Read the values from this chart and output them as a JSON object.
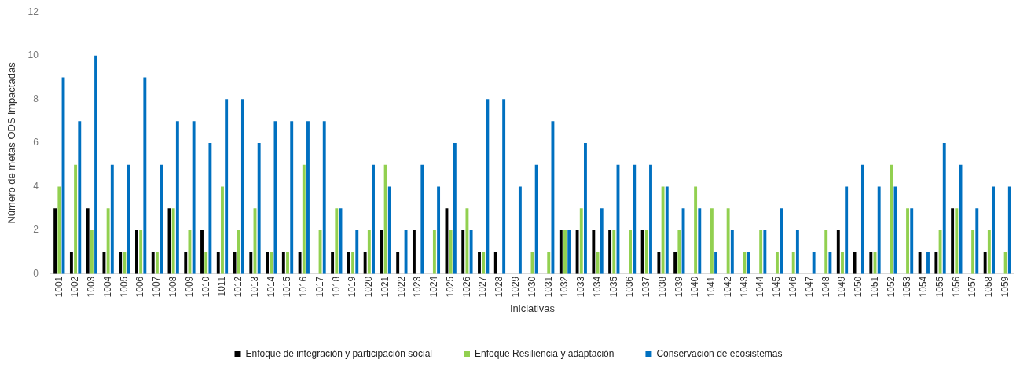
{
  "chart_data": {
    "type": "bar",
    "xlabel": "Iniciativas",
    "ylabel": "Número de metas ODS impactadas",
    "categories": [
      "1001",
      "1002",
      "1003",
      "1004",
      "1005",
      "1006",
      "1007",
      "1008",
      "1009",
      "1010",
      "1011",
      "1012",
      "1013",
      "1014",
      "1015",
      "1016",
      "1017",
      "1018",
      "1019",
      "1020",
      "1021",
      "1022",
      "1023",
      "1024",
      "1025",
      "1026",
      "1027",
      "1028",
      "1029",
      "1030",
      "1031",
      "1032",
      "1033",
      "1034",
      "1035",
      "1036",
      "1037",
      "1038",
      "1039",
      "1040",
      "1041",
      "1042",
      "1043",
      "1044",
      "1045",
      "1046",
      "1047",
      "1048",
      "1049",
      "1050",
      "1051",
      "1052",
      "1053",
      "1054",
      "1055",
      "1056",
      "1057",
      "1058",
      "1059"
    ],
    "series": [
      {
        "name": "Enfoque de integración y participación social",
        "color": "#000000",
        "values": [
          3,
          1,
          3,
          1,
          1,
          2,
          1,
          3,
          1,
          2,
          1,
          1,
          1,
          1,
          1,
          1,
          0,
          1,
          1,
          1,
          2,
          1,
          2,
          0,
          3,
          2,
          1,
          1,
          0,
          0,
          0,
          2,
          2,
          2,
          2,
          0,
          2,
          1,
          1,
          0,
          0,
          0,
          0,
          0,
          0,
          0,
          0,
          0,
          2,
          1,
          1,
          0,
          0,
          1,
          1,
          3,
          0,
          1,
          0
        ]
      },
      {
        "name": "Enfoque Resiliencia y adaptación",
        "color": "#92d050",
        "values": [
          4,
          5,
          2,
          3,
          1,
          2,
          1,
          3,
          2,
          1,
          4,
          2,
          3,
          1,
          1,
          5,
          2,
          3,
          1,
          2,
          5,
          0,
          0,
          2,
          2,
          3,
          1,
          0,
          0,
          1,
          1,
          2,
          3,
          1,
          2,
          2,
          2,
          4,
          2,
          4,
          3,
          3,
          1,
          2,
          1,
          1,
          0,
          2,
          1,
          0,
          1,
          5,
          3,
          0,
          2,
          3,
          2,
          2,
          1
        ]
      },
      {
        "name": "Conservación de ecosistemas",
        "color": "#0070c0",
        "values": [
          9,
          7,
          10,
          5,
          5,
          9,
          5,
          7,
          7,
          6,
          8,
          8,
          6,
          7,
          7,
          7,
          7,
          3,
          2,
          5,
          4,
          2,
          5,
          4,
          6,
          2,
          8,
          8,
          4,
          5,
          7,
          2,
          6,
          3,
          5,
          5,
          5,
          4,
          3,
          3,
          1,
          2,
          1,
          2,
          3,
          2,
          1,
          1,
          4,
          5,
          4,
          4,
          3,
          1,
          6,
          5,
          3,
          4,
          4
        ]
      }
    ],
    "ylim": [
      0,
      12
    ],
    "yticks": [
      0,
      2,
      4,
      6,
      8,
      10,
      12
    ],
    "grid": false,
    "legend": "bottom"
  }
}
